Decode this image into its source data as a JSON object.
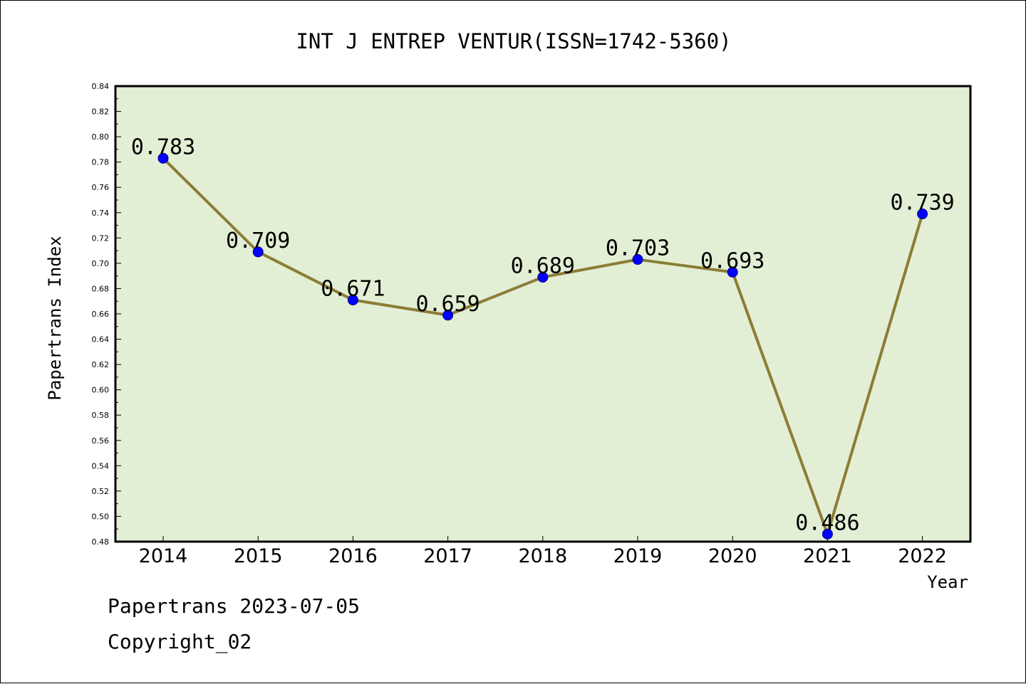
{
  "chart_data": {
    "type": "line",
    "title": "INT J ENTREP VENTUR(ISSN=1742-5360)",
    "xlabel": "Year",
    "ylabel": "Papertrans Index",
    "categories": [
      "2014",
      "2015",
      "2016",
      "2017",
      "2018",
      "2019",
      "2020",
      "2021",
      "2022"
    ],
    "series": [
      {
        "values": [
          0.783,
          0.709,
          0.671,
          0.659,
          0.689,
          0.703,
          0.693,
          0.486,
          0.739
        ]
      }
    ],
    "data_labels": [
      "0.783",
      "0.709",
      "0.671",
      "0.659",
      "0.689",
      "0.703",
      "0.693",
      "0.486",
      "0.739"
    ],
    "ylim": [
      0.48,
      0.84
    ],
    "yticks": [
      "0.48",
      "0.50",
      "0.52",
      "0.54",
      "0.56",
      "0.58",
      "0.60",
      "0.62",
      "0.64",
      "0.66",
      "0.68",
      "0.70",
      "0.72",
      "0.74",
      "0.76",
      "0.78",
      "0.80",
      "0.82",
      "0.84"
    ],
    "grid": false,
    "colors": {
      "plot_background": "#e2efd5",
      "line": "#8b7d35",
      "marker": "#0000ff"
    }
  },
  "footer": {
    "line1": "Papertrans 2023-07-05",
    "line2": "Copyright_02"
  }
}
